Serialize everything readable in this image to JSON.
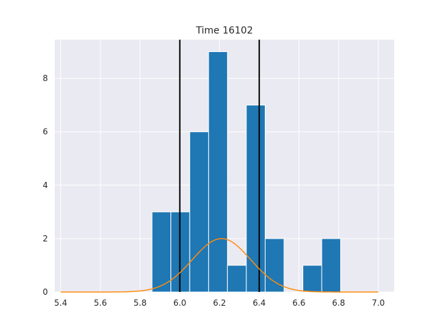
{
  "chart_data": {
    "type": "bar",
    "title": "Time 16102",
    "xlabel": "",
    "ylabel": "",
    "xlim": [
      5.37,
      7.08
    ],
    "ylim": [
      0,
      9.45
    ],
    "x_ticks": [
      5.4,
      5.6,
      5.8,
      6.0,
      6.2,
      6.4,
      6.6,
      6.8,
      7.0
    ],
    "x_tick_labels": [
      "5.4",
      "5.6",
      "5.8",
      "6.0",
      "6.2",
      "6.4",
      "6.6",
      "6.8",
      "7.0"
    ],
    "y_ticks": [
      0,
      2,
      4,
      6,
      8
    ],
    "y_tick_labels": [
      "0",
      "2",
      "4",
      "6",
      "8"
    ],
    "grid": true,
    "histogram": {
      "bin_edges": [
        5.86,
        5.955,
        6.05,
        6.145,
        6.24,
        6.335,
        6.43,
        6.525,
        6.62,
        6.715,
        6.81
      ],
      "counts": [
        3,
        3,
        6,
        9,
        1,
        7,
        2,
        0,
        1,
        2
      ]
    },
    "vertical_lines": [
      6.0,
      6.4
    ],
    "normal_curve": {
      "mean": 6.21,
      "sd": 0.147,
      "peak": 2.0,
      "x_range": [
        5.4,
        7.0
      ]
    },
    "colors": {
      "bar_fill": "#1f77b4",
      "bar_edge": "#ffffff",
      "curve": "#ff8c0e",
      "vlines": "#000000",
      "plot_background": "#eaeaf2",
      "grid": "#ffffff"
    }
  }
}
